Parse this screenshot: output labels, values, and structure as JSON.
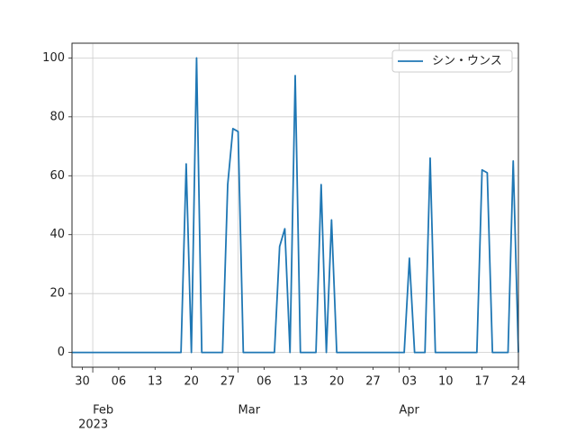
{
  "chart_data": {
    "type": "line",
    "x": [
      "2023-01-28",
      "2023-01-29",
      "2023-01-30",
      "2023-01-31",
      "2023-02-01",
      "2023-02-02",
      "2023-02-03",
      "2023-02-04",
      "2023-02-05",
      "2023-02-06",
      "2023-02-07",
      "2023-02-08",
      "2023-02-09",
      "2023-02-10",
      "2023-02-11",
      "2023-02-12",
      "2023-02-13",
      "2023-02-14",
      "2023-02-15",
      "2023-02-16",
      "2023-02-17",
      "2023-02-18",
      "2023-02-19",
      "2023-02-20",
      "2023-02-21",
      "2023-02-22",
      "2023-02-23",
      "2023-02-24",
      "2023-02-25",
      "2023-02-26",
      "2023-02-27",
      "2023-02-28",
      "2023-03-01",
      "2023-03-02",
      "2023-03-03",
      "2023-03-04",
      "2023-03-05",
      "2023-03-06",
      "2023-03-07",
      "2023-03-08",
      "2023-03-09",
      "2023-03-10",
      "2023-03-11",
      "2023-03-12",
      "2023-03-13",
      "2023-03-14",
      "2023-03-15",
      "2023-03-16",
      "2023-03-17",
      "2023-03-18",
      "2023-03-19",
      "2023-03-20",
      "2023-03-21",
      "2023-03-22",
      "2023-03-23",
      "2023-03-24",
      "2023-03-25",
      "2023-03-26",
      "2023-03-27",
      "2023-03-28",
      "2023-03-29",
      "2023-03-30",
      "2023-03-31",
      "2023-04-01",
      "2023-04-02",
      "2023-04-03",
      "2023-04-04",
      "2023-04-05",
      "2023-04-06",
      "2023-04-07",
      "2023-04-08",
      "2023-04-09",
      "2023-04-10",
      "2023-04-11",
      "2023-04-12",
      "2023-04-13",
      "2023-04-14",
      "2023-04-15",
      "2023-04-16",
      "2023-04-17",
      "2023-04-18",
      "2023-04-19",
      "2023-04-20",
      "2023-04-21",
      "2023-04-22",
      "2023-04-23",
      "2023-04-24"
    ],
    "series": [
      {
        "name": "シン・ウンス",
        "color": "#1f77b4",
        "values": [
          0,
          0,
          0,
          0,
          0,
          0,
          0,
          0,
          0,
          0,
          0,
          0,
          0,
          0,
          0,
          0,
          0,
          0,
          0,
          0,
          0,
          0,
          64,
          0,
          100,
          0,
          0,
          0,
          0,
          0,
          57,
          76,
          75,
          0,
          0,
          0,
          0,
          0,
          0,
          0,
          36,
          42,
          0,
          94,
          0,
          0,
          0,
          0,
          57,
          0,
          45,
          0,
          0,
          0,
          0,
          0,
          0,
          0,
          0,
          0,
          0,
          0,
          0,
          0,
          0,
          32,
          0,
          0,
          0,
          66,
          0,
          0,
          0,
          0,
          0,
          0,
          0,
          0,
          0,
          62,
          61,
          0,
          0,
          0,
          0,
          65,
          0
        ]
      }
    ],
    "xlim": [
      "2023-01-28",
      "2023-04-24"
    ],
    "xticks": [
      {
        "value": "2023-01-30",
        "label": "30"
      },
      {
        "value": "2023-02-06",
        "label": "06"
      },
      {
        "value": "2023-02-13",
        "label": "13"
      },
      {
        "value": "2023-02-20",
        "label": "20"
      },
      {
        "value": "2023-02-27",
        "label": "27"
      },
      {
        "value": "2023-03-06",
        "label": "06"
      },
      {
        "value": "2023-03-13",
        "label": "13"
      },
      {
        "value": "2023-03-20",
        "label": "20"
      },
      {
        "value": "2023-03-27",
        "label": "27"
      },
      {
        "value": "2023-04-03",
        "label": "03"
      },
      {
        "value": "2023-04-10",
        "label": "10"
      },
      {
        "value": "2023-04-17",
        "label": "17"
      },
      {
        "value": "2023-04-24",
        "label": "24"
      }
    ],
    "month_ticks": [
      {
        "value": "2023-02-01",
        "label": "Feb"
      },
      {
        "value": "2023-03-01",
        "label": "Mar"
      },
      {
        "value": "2023-04-01",
        "label": "Apr"
      }
    ],
    "year_label": "2023",
    "ylim": [
      -5,
      105
    ],
    "yticks": [
      0,
      20,
      40,
      60,
      80,
      100
    ],
    "grid": true,
    "legend": "upper right"
  }
}
